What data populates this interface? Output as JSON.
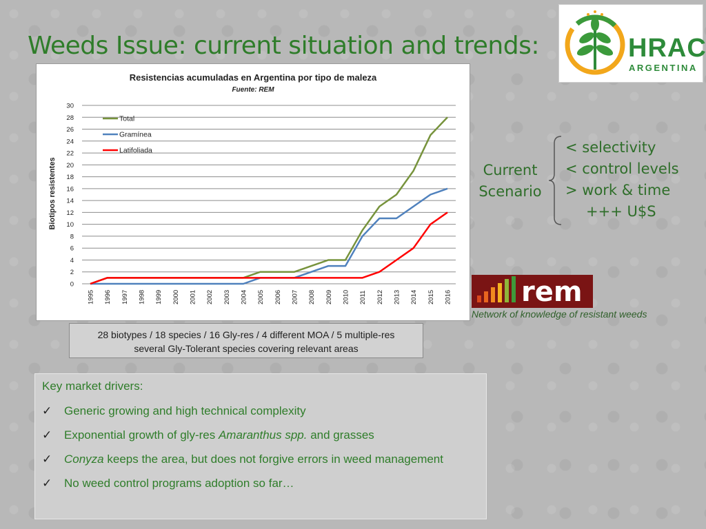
{
  "slide": {
    "title": "Weeds Issue: current situation and trends:",
    "logo": {
      "main": "HRAC",
      "sub": "ARGENTINA"
    },
    "summary": {
      "line1": "28 biotypes / 18 species / 16 Gly-res / 4 different MOA / 5 multiple-res",
      "line2": "several Gly-Tolerant species covering relevant areas"
    },
    "scenario": {
      "label_line1": "Current",
      "label_line2": "Scenario",
      "items": [
        "< selectivity",
        "< control levels",
        "> work & time",
        "+++ U$S"
      ]
    },
    "rem": {
      "text": "rem",
      "caption": "Network of knowledge of resistant weeds"
    },
    "drivers": {
      "title": "Key market drivers:",
      "items": [
        {
          "pre": "Generic growing and high technical complexity",
          "em": "",
          "post": ""
        },
        {
          "pre": "Exponential growth of gly-res ",
          "em": "Amaranthus spp.",
          "post": " and grasses"
        },
        {
          "pre": "",
          "em": "Conyza",
          "post": " keeps the area, but does not forgive errors in weed management"
        },
        {
          "pre": "No weed control programs adoption so far…",
          "em": "",
          "post": ""
        }
      ]
    }
  },
  "colors": {
    "total": "#77933c",
    "graminea": "#4f81bd",
    "latifoliada": "#ff0000",
    "title": "#2f7d2a"
  },
  "chart_data": {
    "type": "line",
    "title": "Resistencias acumuladas en Argentina por tipo de maleza",
    "subtitle": "Fuente: REM",
    "xlabel": "",
    "ylabel": "Biotipos resistentes",
    "ylim": [
      0,
      30
    ],
    "yticks": [
      0,
      2,
      4,
      6,
      8,
      10,
      12,
      14,
      16,
      18,
      20,
      22,
      24,
      26,
      28,
      30
    ],
    "grid": true,
    "legend_position": "top-left",
    "x": [
      "1995",
      "1996",
      "1997",
      "1998",
      "1999",
      "2000",
      "2001",
      "2002",
      "2003",
      "2004",
      "2005",
      "2006",
      "2007",
      "2008",
      "2009",
      "2010",
      "2011",
      "2012",
      "2013",
      "2014",
      "2015",
      "2016"
    ],
    "series": [
      {
        "name": "Total",
        "color": "#77933c",
        "values": [
          0,
          1,
          1,
          1,
          1,
          1,
          1,
          1,
          1,
          1,
          2,
          2,
          2,
          3,
          4,
          4,
          9,
          13,
          15,
          19,
          25,
          28
        ]
      },
      {
        "name": "Gramínea",
        "color": "#4f81bd",
        "values": [
          0,
          0,
          0,
          0,
          0,
          0,
          0,
          0,
          0,
          0,
          1,
          1,
          1,
          2,
          3,
          3,
          8,
          11,
          11,
          13,
          15,
          16
        ]
      },
      {
        "name": "Latifoliada",
        "color": "#ff0000",
        "values": [
          0,
          1,
          1,
          1,
          1,
          1,
          1,
          1,
          1,
          1,
          1,
          1,
          1,
          1,
          1,
          1,
          1,
          2,
          4,
          6,
          10,
          12
        ]
      }
    ]
  }
}
